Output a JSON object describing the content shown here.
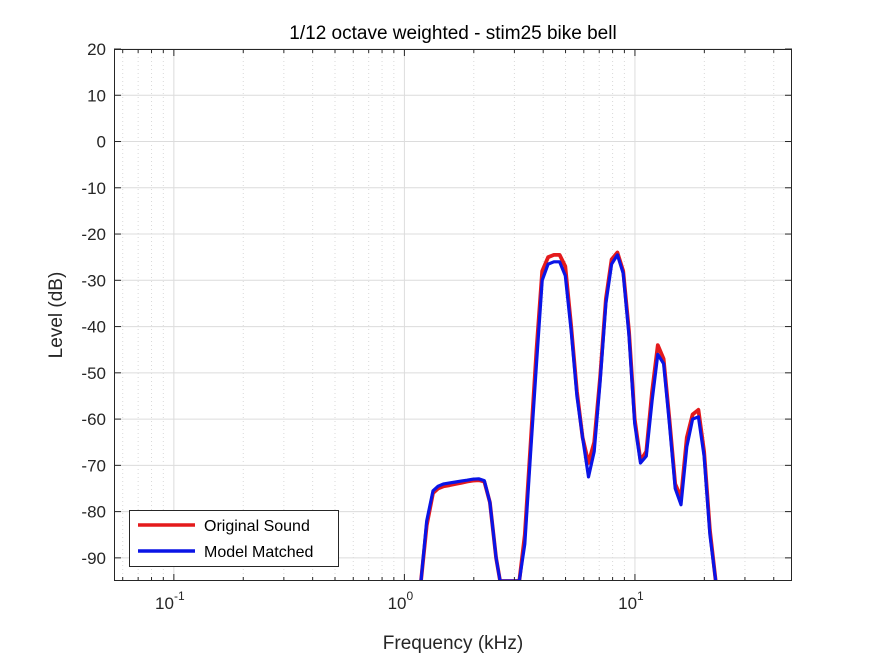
{
  "chart_data": {
    "type": "line",
    "title": "1/12 octave weighted - stim25 bike bell",
    "xlabel": "Frequency (kHz)",
    "ylabel": "Level (dB)",
    "xscale": "log",
    "xlim": [
      0.055,
      48
    ],
    "ylim": [
      -95,
      20
    ],
    "yticks": [
      20,
      10,
      0,
      -10,
      -20,
      -30,
      -40,
      -50,
      -60,
      -70,
      -80,
      -90
    ],
    "ytick_labels": [
      "20",
      "10",
      "0",
      "-10",
      "-20",
      "-30",
      "-40",
      "-50",
      "-60",
      "-70",
      "-80",
      "-90"
    ],
    "xticks": [
      0.1,
      1,
      10
    ],
    "xtick_labels": [
      {
        "base": "10",
        "exp": "-1"
      },
      {
        "base": "10",
        "exp": "0"
      },
      {
        "base": "10",
        "exp": "1"
      }
    ],
    "grid": true,
    "legend_position": "bottom-left",
    "series": [
      {
        "name": "Original Sound",
        "color": "#e41a1c",
        "x": [
          1.18,
          1.25,
          1.33,
          1.4,
          1.48,
          1.57,
          1.67,
          1.76,
          1.87,
          1.98,
          2.1,
          2.22,
          2.35,
          2.5,
          2.6,
          2.65,
          3.15,
          3.33,
          3.53,
          3.74,
          3.96,
          4.2,
          4.45,
          4.71,
          4.99,
          5.29,
          5.6,
          5.93,
          6.29,
          6.66,
          7.06,
          7.48,
          7.92,
          8.39,
          8.89,
          9.42,
          9.98,
          10.57,
          11.2,
          11.87,
          12.57,
          13.32,
          14.11,
          14.95,
          15.84,
          16.78,
          17.78,
          18.84,
          19.95,
          21.14,
          22.4
        ],
        "y": [
          -95,
          -83,
          -76,
          -75,
          -74.5,
          -74.3,
          -74,
          -73.8,
          -73.5,
          -73.3,
          -73.2,
          -73.5,
          -78,
          -90,
          -95,
          -95,
          -95,
          -85,
          -65,
          -45,
          -28,
          -25,
          -24.5,
          -24.5,
          -27,
          -40,
          -54,
          -64,
          -69.5,
          -65,
          -51,
          -34,
          -25.5,
          -24,
          -28,
          -41,
          -60,
          -69,
          -67,
          -54,
          -44,
          -47,
          -60,
          -74,
          -77,
          -64,
          -59,
          -58,
          -67,
          -84,
          -95
        ]
      },
      {
        "name": "Model Matched",
        "color": "#0a14e6",
        "x": [
          1.18,
          1.25,
          1.33,
          1.4,
          1.48,
          1.57,
          1.67,
          1.76,
          1.87,
          1.98,
          2.1,
          2.22,
          2.35,
          2.5,
          2.6,
          2.65,
          3.15,
          3.33,
          3.53,
          3.74,
          3.96,
          4.2,
          4.45,
          4.71,
          4.99,
          5.29,
          5.6,
          5.93,
          6.29,
          6.66,
          7.06,
          7.48,
          7.92,
          8.39,
          8.89,
          9.42,
          9.98,
          10.57,
          11.2,
          11.87,
          12.57,
          13.32,
          14.11,
          14.95,
          15.84,
          16.78,
          17.78,
          18.84,
          19.95,
          21.14,
          22.4
        ],
        "y": [
          -95,
          -82,
          -75.5,
          -74.5,
          -74,
          -73.8,
          -73.6,
          -73.4,
          -73.2,
          -73,
          -72.9,
          -73.3,
          -78,
          -90,
          -95,
          -95,
          -95,
          -87,
          -67,
          -48,
          -30,
          -26.5,
          -26,
          -26,
          -29,
          -41,
          -55,
          -64,
          -72.5,
          -67,
          -52,
          -35,
          -26.5,
          -24.5,
          -28.5,
          -42,
          -61,
          -69.5,
          -68,
          -56,
          -46,
          -48,
          -61,
          -75,
          -78.5,
          -66,
          -60,
          -59.5,
          -68,
          -85,
          -95
        ]
      }
    ]
  }
}
